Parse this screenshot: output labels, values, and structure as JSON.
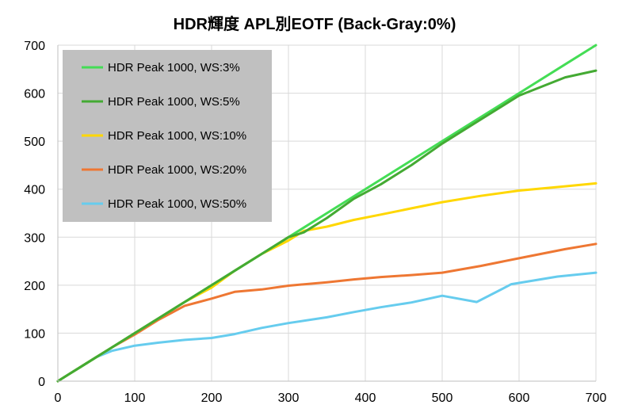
{
  "chart_data": {
    "type": "line",
    "title": "HDR輝度 APL別EOTF (Back-Gray:0%)",
    "xlim": [
      0,
      700
    ],
    "ylim": [
      0,
      700
    ],
    "x_ticks": [
      0,
      100,
      200,
      300,
      400,
      500,
      600,
      700
    ],
    "y_ticks": [
      0,
      100,
      200,
      300,
      400,
      500,
      600,
      700
    ],
    "grid": true,
    "legend_position": "top-left",
    "legend_background": "#c0c0c0",
    "reference_line": {
      "color": "#808080",
      "points": [
        [
          0,
          0
        ],
        [
          700,
          700
        ]
      ]
    },
    "series": [
      {
        "name": "HDR Peak 1000, WS:3%",
        "color": "#44dd55",
        "points": [
          [
            0,
            0
          ],
          [
            15,
            15
          ],
          [
            30,
            30
          ],
          [
            50,
            50
          ],
          [
            70,
            70
          ],
          [
            100,
            100
          ],
          [
            130,
            130
          ],
          [
            165,
            165
          ],
          [
            200,
            200
          ],
          [
            230,
            230
          ],
          [
            265,
            265
          ],
          [
            300,
            300
          ],
          [
            320,
            320
          ],
          [
            350,
            350
          ],
          [
            385,
            385
          ],
          [
            420,
            420
          ],
          [
            460,
            460
          ],
          [
            500,
            500
          ],
          [
            550,
            550
          ],
          [
            600,
            600
          ],
          [
            660,
            660
          ],
          [
            700,
            700
          ]
        ]
      },
      {
        "name": "HDR Peak 1000, WS:5%",
        "color": "#44aa33",
        "points": [
          [
            0,
            0
          ],
          [
            15,
            15
          ],
          [
            30,
            30
          ],
          [
            50,
            50
          ],
          [
            70,
            70
          ],
          [
            100,
            100
          ],
          [
            130,
            130
          ],
          [
            165,
            165
          ],
          [
            200,
            200
          ],
          [
            230,
            230
          ],
          [
            265,
            265
          ],
          [
            300,
            300
          ],
          [
            320,
            310
          ],
          [
            350,
            340
          ],
          [
            385,
            380
          ],
          [
            420,
            410
          ],
          [
            460,
            450
          ],
          [
            500,
            495
          ],
          [
            550,
            545
          ],
          [
            600,
            595
          ],
          [
            660,
            633
          ],
          [
            700,
            647
          ]
        ]
      },
      {
        "name": "HDR Peak 1000, WS:10%",
        "color": "#ffd700",
        "points": [
          [
            0,
            0
          ],
          [
            15,
            15
          ],
          [
            30,
            30
          ],
          [
            50,
            50
          ],
          [
            70,
            70
          ],
          [
            100,
            100
          ],
          [
            130,
            130
          ],
          [
            165,
            165
          ],
          [
            200,
            195
          ],
          [
            230,
            230
          ],
          [
            265,
            265
          ],
          [
            300,
            293
          ],
          [
            320,
            313
          ],
          [
            350,
            322
          ],
          [
            385,
            336
          ],
          [
            420,
            347
          ],
          [
            460,
            360
          ],
          [
            500,
            373
          ],
          [
            550,
            386
          ],
          [
            600,
            397
          ],
          [
            660,
            406
          ],
          [
            700,
            412
          ]
        ]
      },
      {
        "name": "HDR Peak 1000, WS:20%",
        "color": "#ee7733",
        "points": [
          [
            0,
            0
          ],
          [
            15,
            15
          ],
          [
            30,
            30
          ],
          [
            50,
            50
          ],
          [
            70,
            70
          ],
          [
            100,
            97
          ],
          [
            130,
            127
          ],
          [
            165,
            157
          ],
          [
            200,
            172
          ],
          [
            230,
            186
          ],
          [
            265,
            191
          ],
          [
            300,
            199
          ],
          [
            350,
            206
          ],
          [
            385,
            212
          ],
          [
            420,
            217
          ],
          [
            460,
            221
          ],
          [
            500,
            226
          ],
          [
            550,
            240
          ],
          [
            600,
            256
          ],
          [
            660,
            275
          ],
          [
            700,
            286
          ]
        ]
      },
      {
        "name": "HDR Peak 1000, WS:50%",
        "color": "#66ccee",
        "points": [
          [
            0,
            0
          ],
          [
            15,
            15
          ],
          [
            30,
            30
          ],
          [
            50,
            50
          ],
          [
            70,
            63
          ],
          [
            100,
            74
          ],
          [
            130,
            80
          ],
          [
            165,
            86
          ],
          [
            200,
            90
          ],
          [
            230,
            98
          ],
          [
            265,
            111
          ],
          [
            300,
            121
          ],
          [
            350,
            133
          ],
          [
            385,
            144
          ],
          [
            420,
            154
          ],
          [
            460,
            164
          ],
          [
            500,
            178
          ],
          [
            545,
            165
          ],
          [
            590,
            202
          ],
          [
            650,
            218
          ],
          [
            700,
            226
          ]
        ]
      }
    ]
  }
}
